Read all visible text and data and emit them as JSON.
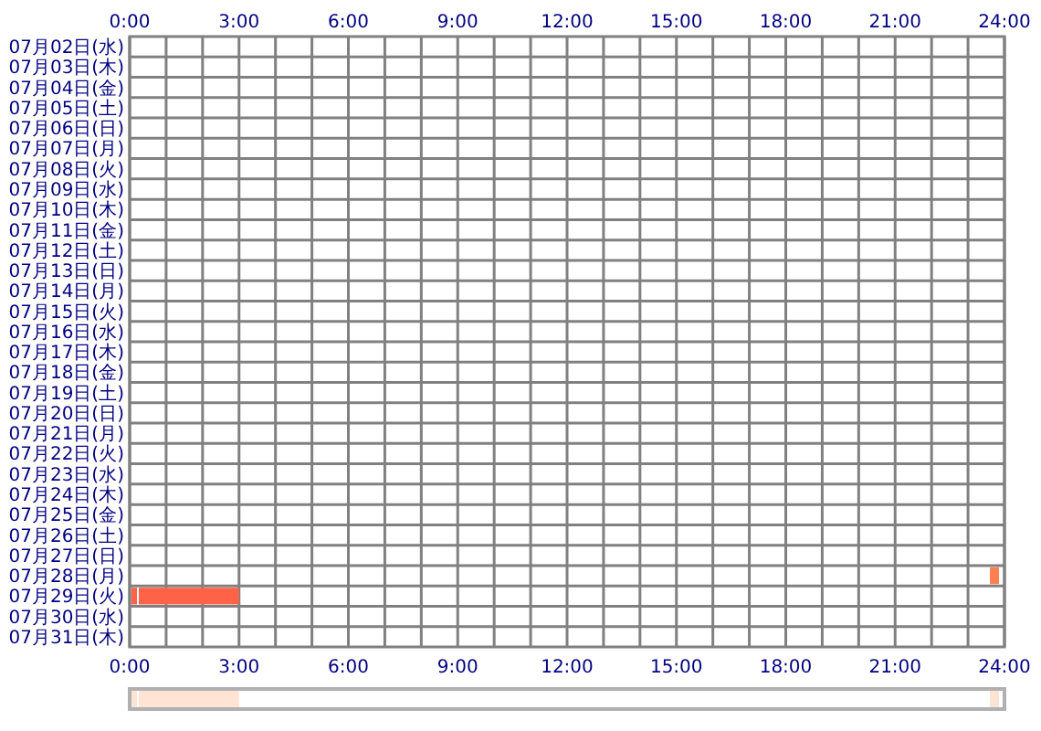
{
  "chart_data": [
    {
      "type": "bar",
      "orientation": "horizontal",
      "categories": [
        "07月02日(水)",
        "07月03日(木)",
        "07月04日(金)",
        "07月05日(土)",
        "07月06日(日)",
        "07月07日(月)",
        "07月08日(火)",
        "07月09日(水)",
        "07月10日(木)",
        "07月11日(金)",
        "07月12日(土)",
        "07月13日(日)",
        "07月14日(月)",
        "07月15日(火)",
        "07月16日(水)",
        "07月17日(木)",
        "07月18日(金)",
        "07月19日(土)",
        "07月20日(日)",
        "07月21日(月)",
        "07月22日(火)",
        "07月23日(水)",
        "07月24日(木)",
        "07月25日(金)",
        "07月26日(土)",
        "07月27日(日)",
        "07月28日(月)",
        "07月29日(火)",
        "07月30日(水)",
        "07月31日(木)"
      ],
      "series": [
        {
          "color": "#ff6347",
          "base": [
            null,
            null,
            null,
            null,
            null,
            null,
            null,
            null,
            null,
            null,
            null,
            null,
            null,
            null,
            null,
            null,
            null,
            null,
            null,
            null,
            null,
            null,
            null,
            null,
            null,
            null,
            null,
            0.05,
            null,
            null
          ],
          "values": [
            null,
            null,
            null,
            null,
            null,
            null,
            null,
            null,
            null,
            null,
            null,
            null,
            null,
            null,
            null,
            null,
            null,
            null,
            null,
            null,
            null,
            null,
            null,
            null,
            null,
            null,
            null,
            0.15,
            null,
            null
          ]
        },
        {
          "color": "#ff6347",
          "base": [
            null,
            null,
            null,
            null,
            null,
            null,
            null,
            null,
            null,
            null,
            null,
            null,
            null,
            null,
            null,
            null,
            null,
            null,
            null,
            null,
            null,
            null,
            null,
            null,
            null,
            null,
            null,
            0.25,
            null,
            null
          ],
          "values": [
            null,
            null,
            null,
            null,
            null,
            null,
            null,
            null,
            null,
            null,
            null,
            null,
            null,
            null,
            null,
            null,
            null,
            null,
            null,
            null,
            null,
            null,
            null,
            null,
            null,
            null,
            null,
            2.75,
            null,
            null
          ]
        },
        {
          "color": "#ff7f50",
          "base": [
            null,
            null,
            null,
            null,
            null,
            null,
            null,
            null,
            null,
            null,
            null,
            null,
            null,
            null,
            null,
            null,
            null,
            null,
            null,
            null,
            null,
            null,
            null,
            null,
            null,
            null,
            23.6,
            null,
            null,
            null
          ],
          "values": [
            null,
            null,
            null,
            null,
            null,
            null,
            null,
            null,
            null,
            null,
            null,
            null,
            null,
            null,
            null,
            null,
            null,
            null,
            null,
            null,
            null,
            null,
            null,
            null,
            null,
            null,
            0.25,
            null,
            null,
            null
          ]
        }
      ],
      "xlim": [
        0,
        24
      ],
      "xticks": [
        {
          "value": 0,
          "label": "0:00"
        },
        {
          "value": 1,
          "label": null
        },
        {
          "value": 2,
          "label": null
        },
        {
          "value": 3,
          "label": "3:00"
        },
        {
          "value": 4,
          "label": null
        },
        {
          "value": 5,
          "label": null
        },
        {
          "value": 6,
          "label": "6:00"
        },
        {
          "value": 7,
          "label": null
        },
        {
          "value": 8,
          "label": null
        },
        {
          "value": 9,
          "label": "9:00"
        },
        {
          "value": 10,
          "label": null
        },
        {
          "value": 11,
          "label": null
        },
        {
          "value": 12,
          "label": "12:00"
        },
        {
          "value": 13,
          "label": null
        },
        {
          "value": 14,
          "label": null
        },
        {
          "value": 15,
          "label": "15:00"
        },
        {
          "value": 16,
          "label": null
        },
        {
          "value": 17,
          "label": null
        },
        {
          "value": 18,
          "label": "18:00"
        },
        {
          "value": 19,
          "label": null
        },
        {
          "value": 20,
          "label": null
        },
        {
          "value": 21,
          "label": "21:00"
        },
        {
          "value": 22,
          "label": null
        },
        {
          "value": 23,
          "label": null
        },
        {
          "value": 24,
          "label": "24:00"
        }
      ],
      "x2lim": [
        0,
        24
      ],
      "x2ticks": [
        {
          "value": 0,
          "label": "0:00"
        },
        {
          "value": 1,
          "label": null
        },
        {
          "value": 2,
          "label": null
        },
        {
          "value": 3,
          "label": "3:00"
        },
        {
          "value": 4,
          "label": null
        },
        {
          "value": 5,
          "label": null
        },
        {
          "value": 6,
          "label": "6:00"
        },
        {
          "value": 7,
          "label": null
        },
        {
          "value": 8,
          "label": null
        },
        {
          "value": 9,
          "label": "9:00"
        },
        {
          "value": 10,
          "label": null
        },
        {
          "value": 11,
          "label": null
        },
        {
          "value": 12,
          "label": "12:00"
        },
        {
          "value": 13,
          "label": null
        },
        {
          "value": 14,
          "label": null
        },
        {
          "value": 15,
          "label": "15:00"
        },
        {
          "value": 16,
          "label": null
        },
        {
          "value": 17,
          "label": null
        },
        {
          "value": 18,
          "label": "18:00"
        },
        {
          "value": 19,
          "label": null
        },
        {
          "value": 20,
          "label": null
        },
        {
          "value": 21,
          "label": "21:00"
        },
        {
          "value": 22,
          "label": null
        },
        {
          "value": 23,
          "label": null
        },
        {
          "value": 24,
          "label": "24:00"
        }
      ],
      "grid": true
    },
    {
      "type": "bar",
      "orientation": "horizontal",
      "categories": [
        null
      ],
      "series": [
        {
          "color": "#ffe4d4",
          "base": [
            0.05
          ],
          "values": [
            0.15
          ]
        },
        {
          "color": "#ffe4d4",
          "base": [
            0.25
          ],
          "values": [
            2.75
          ]
        },
        {
          "color": "#ffe4d4",
          "base": [
            23.6
          ],
          "values": [
            0.25
          ]
        }
      ],
      "xlim": [
        0,
        24
      ],
      "grid": false
    }
  ]
}
